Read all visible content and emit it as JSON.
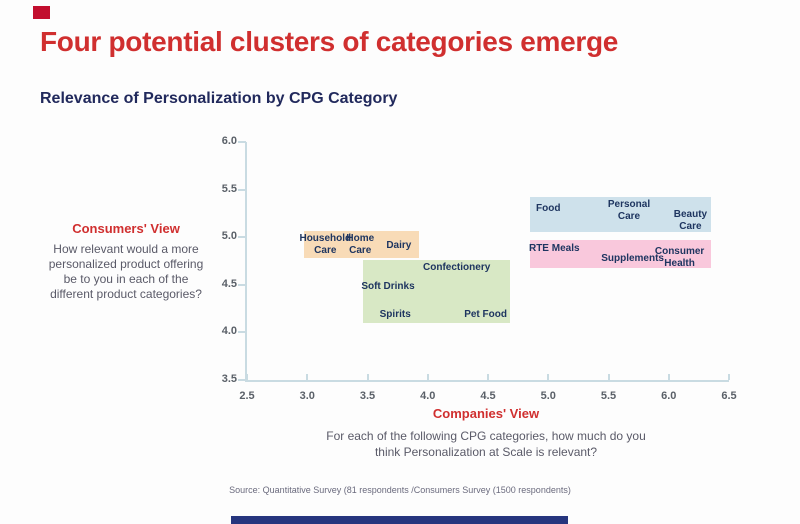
{
  "header": {
    "title": "Four potential clusters of categories emerge",
    "subtitle": "Relevance of Personalization by CPG Category"
  },
  "left_panel": {
    "heading": "Consumers' View",
    "body_lines": [
      "How relevant would a more",
      "personalized product offering",
      "be to you in each of the",
      "different product categories?"
    ]
  },
  "bottom_panel": {
    "heading": "Companies' View",
    "body_lines": [
      "For each of the following CPG categories, how much do you",
      "think Personalization at Scale is relevant?"
    ],
    "source": "Source: Quantitative Survey (81 respondents /Consumers Survey (1500 respondents)"
  },
  "colors": {
    "accent_red": "#D02F2F",
    "navy": "#21295C",
    "brand_mark": "#C20E2E",
    "footer_bar": "#26357E",
    "axis": "#C9DBE2",
    "cluster_text": "#1E3560"
  },
  "chart_data": {
    "type": "scatter",
    "title": "Relevance of Personalization by CPG Category",
    "xlabel": "Companies' View",
    "ylabel": "Consumers' View",
    "xlim": [
      2.5,
      6.5
    ],
    "ylim": [
      3.5,
      6.0
    ],
    "x_ticks": [
      "2.5",
      "3.0",
      "3.5",
      "4.0",
      "4.5",
      "5.0",
      "5.5",
      "6.0",
      "6.5"
    ],
    "y_ticks": [
      "6.0",
      "5.5",
      "5.0",
      "4.5",
      "4.0",
      "3.5"
    ],
    "grid": false,
    "legend": "none",
    "clusters": [
      {
        "name": "household-home-dairy",
        "color": "#F8DBB7",
        "x_range": [
          2.97,
          3.93
        ],
        "y_range": [
          4.78,
          5.06
        ],
        "items": [
          {
            "label": "Household\nCare",
            "x": 3.15,
            "y": 4.92
          },
          {
            "label": "Home\nCare",
            "x": 3.44,
            "y": 4.92
          },
          {
            "label": "Dairy",
            "x": 3.76,
            "y": 4.91
          }
        ]
      },
      {
        "name": "confectionery-drinks-spirits-petfood",
        "color": "#D8E8C5",
        "x_range": [
          3.46,
          4.68
        ],
        "y_range": [
          4.1,
          4.76
        ],
        "items": [
          {
            "label": "Confectionery",
            "x": 4.24,
            "y": 4.68
          },
          {
            "label": "Soft Drinks",
            "x": 3.67,
            "y": 4.48
          },
          {
            "label": "Spirits",
            "x": 3.73,
            "y": 4.18
          },
          {
            "label": "Pet Food",
            "x": 4.48,
            "y": 4.18
          }
        ]
      },
      {
        "name": "food-personal-beauty",
        "color": "#CEE1EB",
        "x_range": [
          4.85,
          6.35
        ],
        "y_range": [
          5.05,
          5.42
        ],
        "items": [
          {
            "label": "Food",
            "x": 5.0,
            "y": 5.3
          },
          {
            "label": "Personal\nCare",
            "x": 5.67,
            "y": 5.28
          },
          {
            "label": "Beauty\nCare",
            "x": 6.18,
            "y": 5.17
          }
        ]
      },
      {
        "name": "rte-supplements-consumerhealth",
        "color": "#F9C8DC",
        "x_range": [
          4.85,
          6.35
        ],
        "y_range": [
          4.68,
          4.97
        ],
        "items": [
          {
            "label": "RTE Meals",
            "x": 5.05,
            "y": 4.88
          },
          {
            "label": "Supplements",
            "x": 5.7,
            "y": 4.77
          },
          {
            "label": "Consumer\nHealth",
            "x": 6.09,
            "y": 4.78
          }
        ]
      }
    ]
  }
}
